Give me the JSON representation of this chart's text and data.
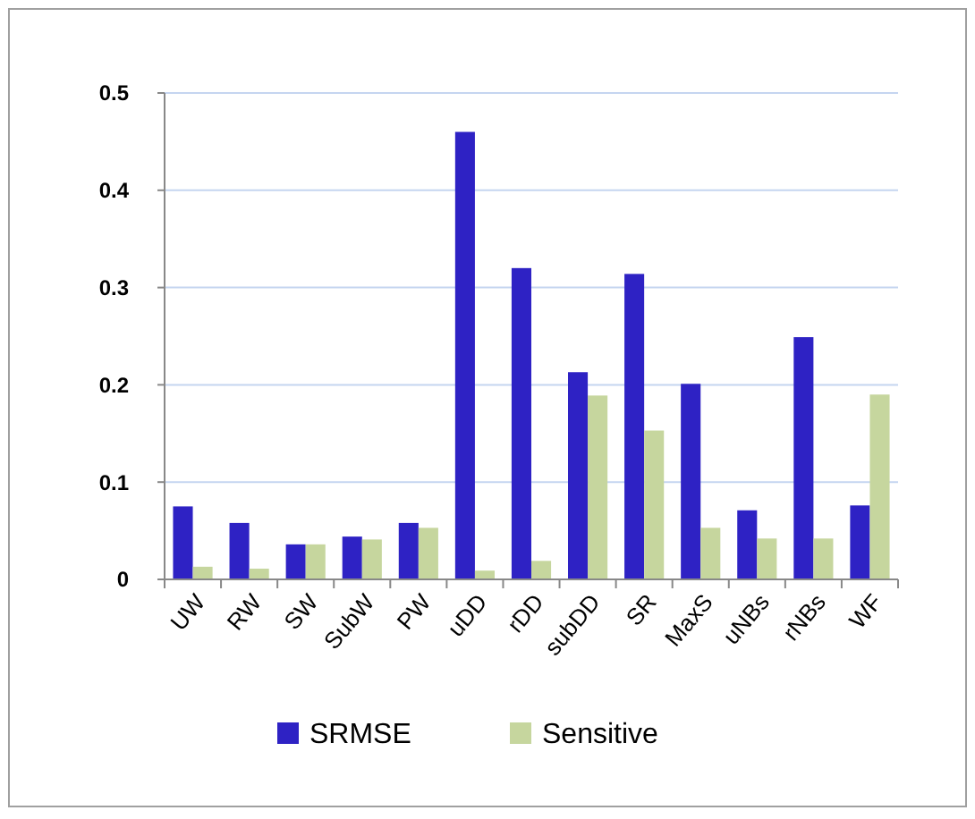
{
  "chart_data": {
    "type": "bar",
    "categories": [
      "UW",
      "RW",
      "SW",
      "SubW",
      "PW",
      "uDD",
      "rDD",
      "subDD",
      "SR",
      "MaxS",
      "uNBs",
      "rNBs",
      "WF"
    ],
    "series": [
      {
        "name": "SRMSE",
        "color": "#2e22c4",
        "values": [
          0.075,
          0.058,
          0.036,
          0.044,
          0.058,
          0.46,
          0.32,
          0.213,
          0.314,
          0.201,
          0.071,
          0.249,
          0.076
        ]
      },
      {
        "name": "Sensitive",
        "color": "#c6d69e",
        "values": [
          0.013,
          0.011,
          0.036,
          0.041,
          0.053,
          0.009,
          0.019,
          0.189,
          0.153,
          0.053,
          0.042,
          0.042,
          0.19
        ]
      }
    ],
    "ylim": [
      0,
      0.5
    ],
    "yticks": [
      0,
      0.1,
      0.2,
      0.3,
      0.4,
      0.5
    ],
    "grid": "y",
    "legend": "bottom"
  }
}
